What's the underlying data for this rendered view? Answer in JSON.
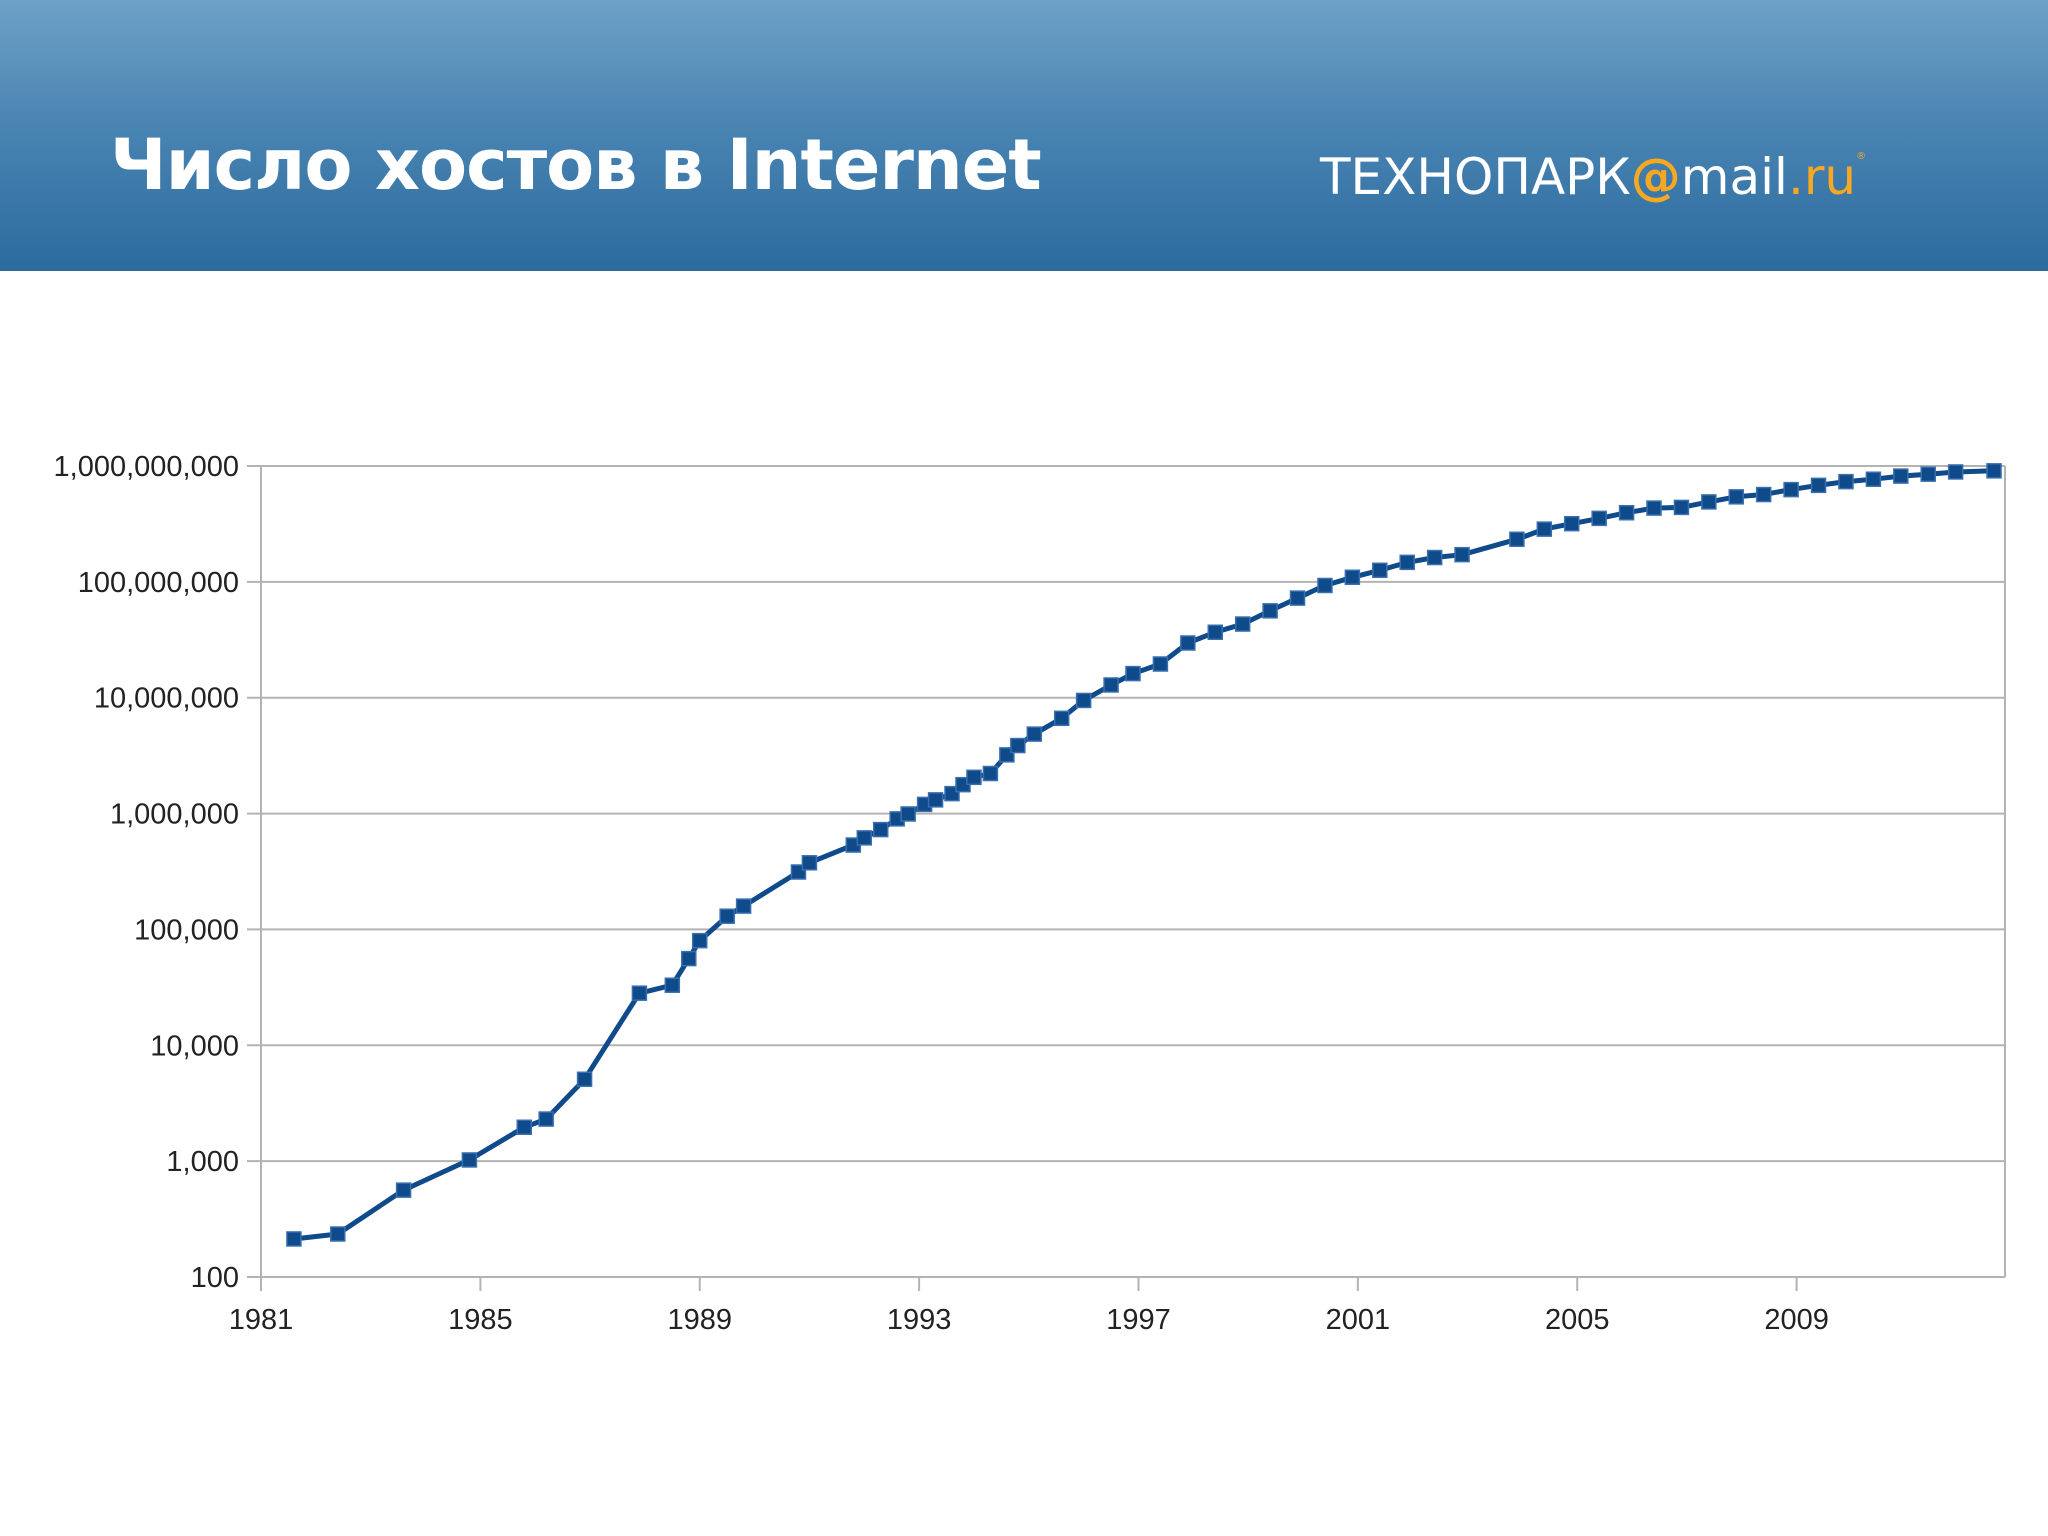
{
  "header": {
    "title": "Число хостов в Internet",
    "logo": {
      "part1": "ТЕХНОПАРК",
      "at": "@",
      "mail": "mail",
      "dot": ".",
      "ru": "ru",
      "reg": "®"
    }
  },
  "colors": {
    "header_top": "#6ea1c6",
    "header_bottom": "#2b6b9e",
    "series": "#0f4a8a",
    "grid": "#b3b3b3",
    "logo_accent": "#f7a823"
  },
  "chart_data": {
    "type": "line",
    "title": "",
    "xlabel": "",
    "ylabel": "",
    "x_scale": "linear",
    "y_scale": "log",
    "xlim": [
      1981,
      2012.8
    ],
    "ylim": [
      100,
      1000000000
    ],
    "grid": true,
    "legend": "none",
    "x_ticks": [
      "1981",
      "1985",
      "1989",
      "1993",
      "1997",
      "2001",
      "2005",
      "2009"
    ],
    "y_ticks": [
      "100",
      "1,000",
      "10,000",
      "100,000",
      "1,000,000",
      "10,000,000",
      "100,000,000",
      "1,000,000,000"
    ],
    "series": [
      {
        "marker": "square",
        "points": [
          [
            1981.6,
            213
          ],
          [
            1982.4,
            235
          ],
          [
            1983.6,
            562
          ],
          [
            1984.8,
            1024
          ],
          [
            1985.8,
            1961
          ],
          [
            1986.2,
            2308
          ],
          [
            1986.9,
            5089
          ],
          [
            1987.9,
            28174
          ],
          [
            1988.5,
            33000
          ],
          [
            1988.8,
            56000
          ],
          [
            1989.0,
            80000
          ],
          [
            1989.5,
            130000
          ],
          [
            1989.8,
            159000
          ],
          [
            1990.8,
            313000
          ],
          [
            1991.0,
            376000
          ],
          [
            1991.8,
            535000
          ],
          [
            1992.0,
            617000
          ],
          [
            1992.3,
            727000
          ],
          [
            1992.6,
            900000
          ],
          [
            1992.8,
            992000
          ],
          [
            1993.1,
            1200000
          ],
          [
            1993.3,
            1313000
          ],
          [
            1993.6,
            1486000
          ],
          [
            1993.8,
            1776000
          ],
          [
            1994.0,
            2056000
          ],
          [
            1994.3,
            2217000
          ],
          [
            1994.6,
            3212000
          ],
          [
            1994.8,
            3864000
          ],
          [
            1995.1,
            4852000
          ],
          [
            1995.6,
            6642000
          ],
          [
            1996.0,
            9472000
          ],
          [
            1996.5,
            12881000
          ],
          [
            1996.9,
            16146000
          ],
          [
            1997.4,
            19540000
          ],
          [
            1997.9,
            29670000
          ],
          [
            1998.4,
            36739000
          ],
          [
            1998.9,
            43230000
          ],
          [
            1999.4,
            56218000
          ],
          [
            1999.9,
            72398000
          ],
          [
            2000.4,
            93047000
          ],
          [
            2000.9,
            109574000
          ],
          [
            2001.4,
            125888000
          ],
          [
            2001.9,
            147345000
          ],
          [
            2002.4,
            162128000
          ],
          [
            2002.9,
            171638000
          ],
          [
            2003.9,
            233101000
          ],
          [
            2004.4,
            285139000
          ],
          [
            2004.9,
            317646000
          ],
          [
            2005.4,
            353284000
          ],
          [
            2005.9,
            394992000
          ],
          [
            2006.4,
            433193000
          ],
          [
            2006.9,
            439286000
          ],
          [
            2007.4,
            489774000
          ],
          [
            2007.9,
            541677000
          ],
          [
            2008.4,
            567000000
          ],
          [
            2008.9,
            625226000
          ],
          [
            2009.4,
            681064000
          ],
          [
            2009.9,
            732740000
          ],
          [
            2010.4,
            768913000
          ],
          [
            2010.9,
            818374000
          ],
          [
            2011.4,
            849869000
          ],
          [
            2011.9,
            888239000
          ],
          [
            2012.6,
            908585000
          ]
        ]
      }
    ]
  }
}
